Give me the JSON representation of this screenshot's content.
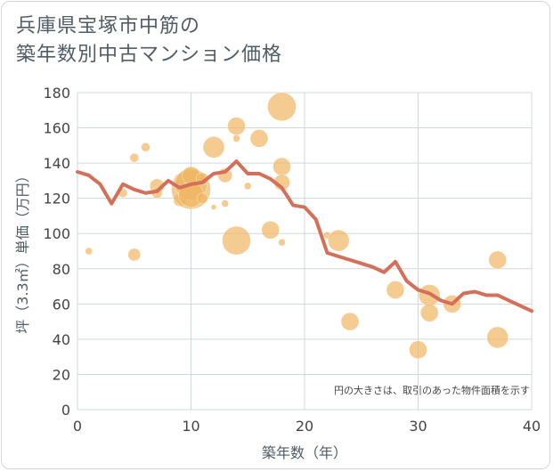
{
  "title_line1": "兵庫県宝塚市中筋の",
  "title_line2": "築年数別中古マンション価格",
  "colors": {
    "bubble": "#f0b762",
    "line": "#d4705a",
    "grid": "#cfd8dc",
    "axis_text": "#444444"
  },
  "chart_data": {
    "type": "scatter",
    "xlabel": "築年数（年）",
    "ylabel": "坪（3.3㎡）単価（万円）",
    "xlim": [
      0,
      40
    ],
    "ylim": [
      0,
      180
    ],
    "xticks": [
      "0",
      "10",
      "20",
      "30",
      "40"
    ],
    "yticks": [
      "0",
      "20",
      "40",
      "60",
      "80",
      "100",
      "120",
      "140",
      "160",
      "180"
    ],
    "grid": true,
    "annotation": "円の大きさは、取引のあった物件面積を示す",
    "bubbles": [
      {
        "x": 1,
        "y": 90,
        "size": 4
      },
      {
        "x": 4,
        "y": 123,
        "size": 5
      },
      {
        "x": 5,
        "y": 143,
        "size": 5
      },
      {
        "x": 5,
        "y": 88,
        "size": 7
      },
      {
        "x": 6,
        "y": 149,
        "size": 5
      },
      {
        "x": 7,
        "y": 127,
        "size": 8
      },
      {
        "x": 7,
        "y": 123,
        "size": 6
      },
      {
        "x": 9,
        "y": 119,
        "size": 7
      },
      {
        "x": 9,
        "y": 131,
        "size": 6
      },
      {
        "x": 10,
        "y": 125,
        "size": 22
      },
      {
        "x": 10,
        "y": 128,
        "size": 18
      },
      {
        "x": 10,
        "y": 122,
        "size": 14
      },
      {
        "x": 10,
        "y": 133,
        "size": 10
      },
      {
        "x": 11,
        "y": 131,
        "size": 7
      },
      {
        "x": 11,
        "y": 120,
        "size": 6
      },
      {
        "x": 12,
        "y": 149,
        "size": 12
      },
      {
        "x": 12,
        "y": 115,
        "size": 3
      },
      {
        "x": 13,
        "y": 133,
        "size": 8
      },
      {
        "x": 13,
        "y": 117,
        "size": 4
      },
      {
        "x": 14,
        "y": 161,
        "size": 10
      },
      {
        "x": 14,
        "y": 154,
        "size": 4
      },
      {
        "x": 14,
        "y": 96,
        "size": 16
      },
      {
        "x": 15,
        "y": 127,
        "size": 4
      },
      {
        "x": 16,
        "y": 154,
        "size": 10
      },
      {
        "x": 17,
        "y": 102,
        "size": 10
      },
      {
        "x": 18,
        "y": 172,
        "size": 16
      },
      {
        "x": 18,
        "y": 138,
        "size": 10
      },
      {
        "x": 18,
        "y": 129,
        "size": 9
      },
      {
        "x": 18,
        "y": 95,
        "size": 4
      },
      {
        "x": 22,
        "y": 99,
        "size": 4
      },
      {
        "x": 23,
        "y": 96,
        "size": 12
      },
      {
        "x": 24,
        "y": 50,
        "size": 10
      },
      {
        "x": 28,
        "y": 68,
        "size": 10
      },
      {
        "x": 30,
        "y": 34,
        "size": 10
      },
      {
        "x": 31,
        "y": 65,
        "size": 12
      },
      {
        "x": 31,
        "y": 55,
        "size": 10
      },
      {
        "x": 33,
        "y": 60,
        "size": 10
      },
      {
        "x": 37,
        "y": 85,
        "size": 10
      },
      {
        "x": 37,
        "y": 41,
        "size": 12
      }
    ],
    "series": [
      {
        "x": [
          0,
          1,
          2,
          3,
          4,
          5,
          6,
          7,
          8,
          9,
          10,
          11,
          12,
          13,
          14,
          15,
          16,
          17,
          18,
          19,
          20,
          21,
          22,
          23,
          24,
          25,
          26,
          27,
          28,
          29,
          30,
          31,
          32,
          33,
          34,
          35,
          36,
          37,
          38,
          39,
          40
        ],
        "values": [
          135,
          133,
          128,
          117,
          128,
          125,
          123,
          124,
          130,
          126,
          128,
          129,
          134,
          135,
          141,
          134,
          134,
          131,
          126,
          116,
          115,
          108,
          89,
          87,
          85,
          83,
          81,
          78,
          84,
          73,
          68,
          66,
          62,
          60,
          66,
          67,
          65,
          65,
          62,
          59,
          56
        ]
      }
    ]
  }
}
